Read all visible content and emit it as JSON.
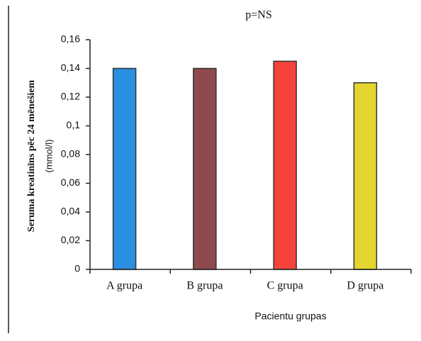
{
  "chart_data": {
    "type": "bar",
    "title": "p=NS",
    "y_label": [
      "Seruma kreatinīns pēc 24 mēnešiem",
      "(mmol/l)"
    ],
    "x_label": "Pacientu grupas",
    "categories": [
      "A grupa",
      "B grupa",
      "C grupa",
      "D grupa"
    ],
    "values": [
      0.14,
      0.14,
      0.145,
      0.13
    ],
    "colors": [
      "#2b8fe3",
      "#8e4b4d",
      "#f5423b",
      "#e5d530"
    ],
    "ylim": [
      0,
      0.16
    ],
    "yticks": [
      0,
      {
        "value": 0.02,
        "label": "0,02"
      },
      {
        "value": 0.04,
        "label": "0,04"
      },
      {
        "value": 0.06,
        "label": "0,06"
      },
      {
        "value": 0.08,
        "label": "0,08"
      },
      {
        "value": 0.1,
        "label": "0,1"
      },
      {
        "value": 0.12,
        "label": "0,12"
      },
      {
        "value": 0.14,
        "label": "0,14"
      },
      {
        "value": 0.16,
        "label": "0,16"
      }
    ]
  }
}
